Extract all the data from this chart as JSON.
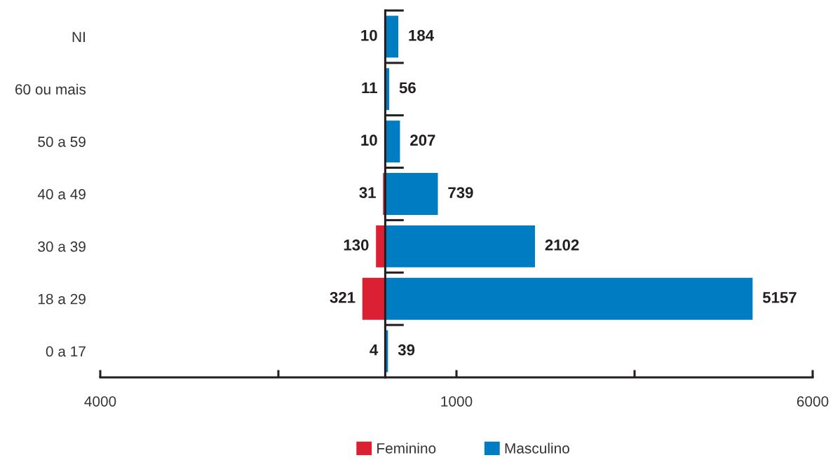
{
  "chart_data": {
    "type": "bar",
    "orientation": "horizontal",
    "stacked": true,
    "legend": "bottom",
    "categories": [
      "NI",
      "60 ou mais",
      "50 a 59",
      "40 a 49",
      "30 a 39",
      "18 a 29",
      "0 a 17"
    ],
    "series": [
      {
        "name": "Feminino",
        "color": "#dc2033",
        "base": [
          -10,
          -11,
          -10,
          -31,
          -130,
          -321,
          -4
        ],
        "values": [
          10,
          11,
          10,
          31,
          130,
          321,
          4
        ],
        "value_labels": [
          "10",
          "11",
          "10",
          "31",
          "130",
          "321",
          "4"
        ]
      },
      {
        "name": "Masculino",
        "color": "#007cc3",
        "values": [
          184,
          56,
          207,
          739,
          2102,
          5157,
          39
        ],
        "value_labels": [
          "184",
          "56",
          "207",
          "739",
          "2102",
          "5157",
          "39"
        ]
      }
    ],
    "xlim": [
      -4000,
      6000
    ],
    "xticks": [
      {
        "value": -4000,
        "label": "4000"
      },
      {
        "value": -1500,
        "label": null
      },
      1000,
      {
        "value": 3500,
        "label": null
      },
      6000
    ]
  }
}
